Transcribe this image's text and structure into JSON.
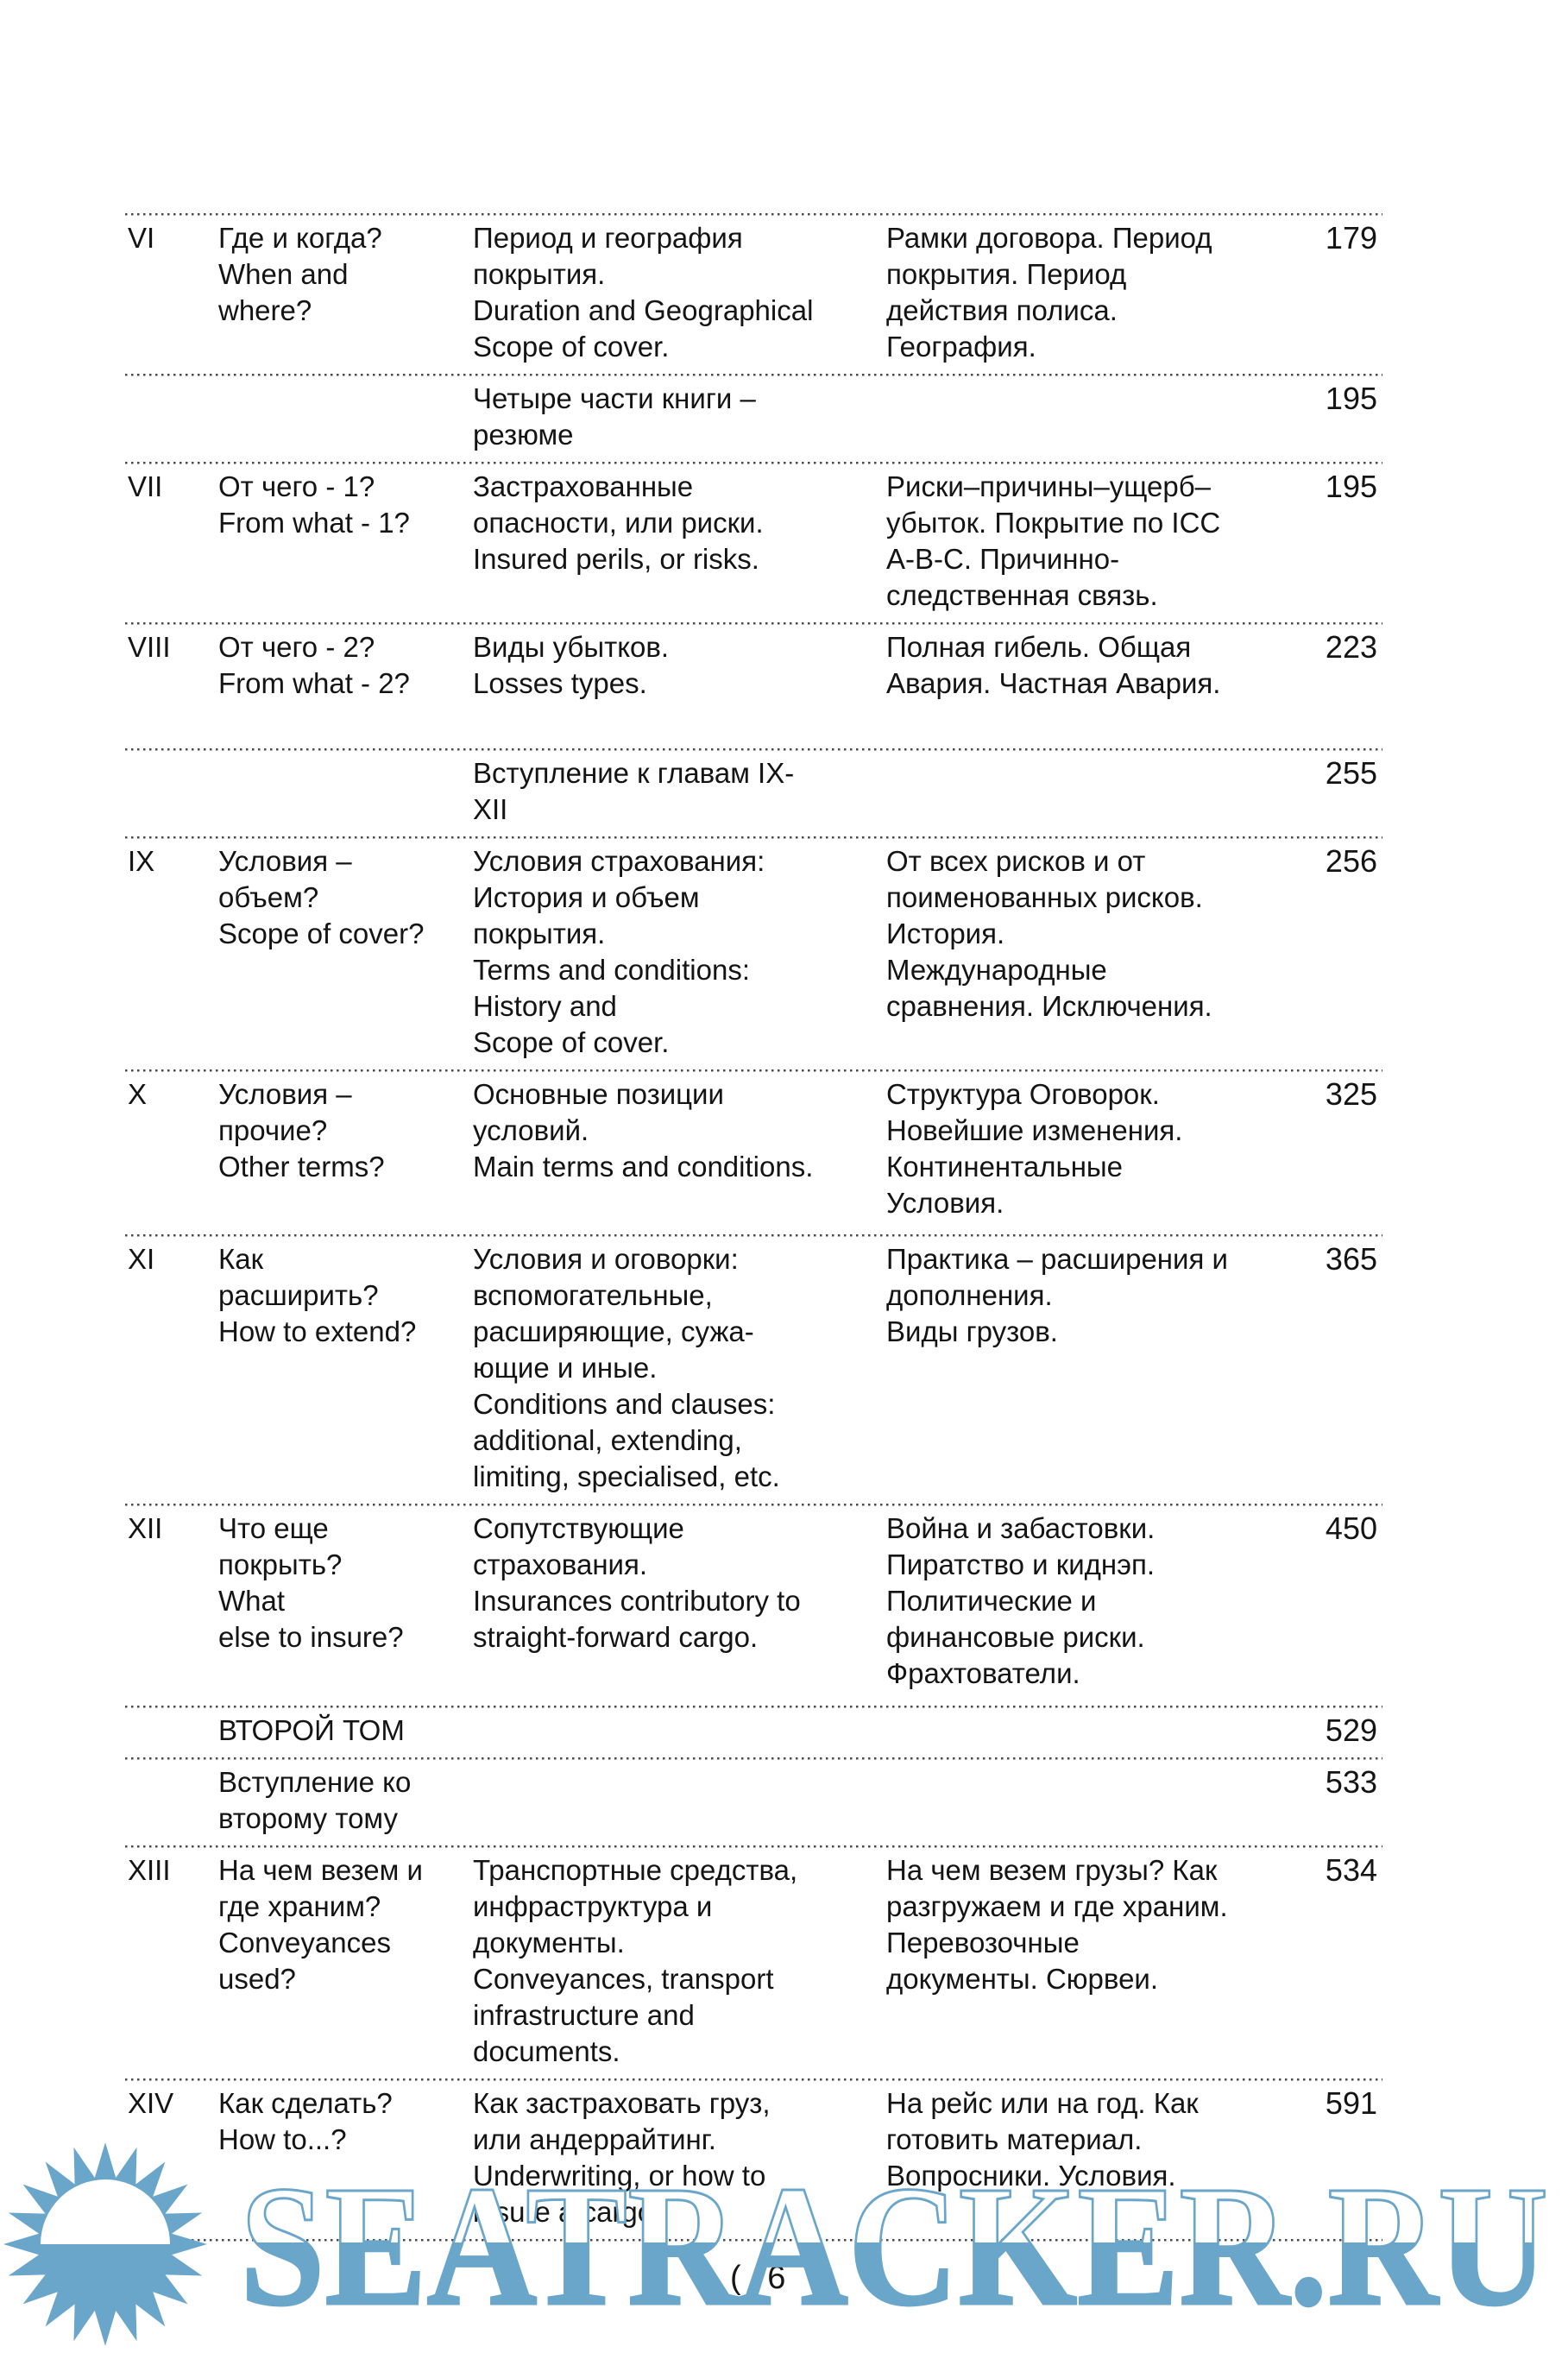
{
  "page": {
    "number_label": "( 6 )"
  },
  "toc": {
    "rows": [
      {
        "num": "VI",
        "title": [
          "Где и когда?",
          "When and",
          "where?"
        ],
        "desc": [
          "Период и география",
          "покрытия.",
          "Duration and Geographical",
          "Scope of cover."
        ],
        "summary": [
          "Рамки договора. Период",
          "покрытия. Период",
          "действия полиса.",
          "География."
        ],
        "pg": "179"
      },
      {
        "num": "",
        "title": [],
        "desc": [
          "Четыре части книги –",
          "резюме"
        ],
        "summary": [],
        "pg": "195"
      },
      {
        "num": "VII",
        "title": [
          "От чего - 1?",
          "From what - 1?"
        ],
        "desc": [
          "Застрахованные",
          "опасности, или риски.",
          "Insured perils, or risks."
        ],
        "summary": [
          "Риски–причины–ущерб–",
          "убыток. Покрытие по ICC",
          "A-B-C. Причинно-",
          "следственная связь."
        ],
        "pg": "195"
      },
      {
        "num": "VIII",
        "title": [
          "От чего - 2?",
          "From what - 2?"
        ],
        "desc": [
          "Виды убытков.",
          "Losses types."
        ],
        "summary": [
          "Полная гибель. Общая",
          "Авария. Частная Авария."
        ],
        "pg": "223"
      },
      {
        "num": "",
        "title": [],
        "desc": [
          "Вступление к главам IX-",
          "XII"
        ],
        "summary": [],
        "pg": "255"
      },
      {
        "num": "IX",
        "title": [
          "Условия –",
          "объем?",
          "Scope of cover?"
        ],
        "desc": [
          "Условия страхования:",
          "История и объем",
          "покрытия.",
          "Terms and conditions:",
          "History and",
          "Scope of cover."
        ],
        "summary": [
          "От всех рисков и от",
          "поименованных рисков.",
          "История.",
          "Международные",
          "сравнения. Исключения."
        ],
        "pg": "256"
      },
      {
        "num": "X",
        "title": [
          "Условия –",
          "прочие?",
          "Other terms?"
        ],
        "desc": [
          "Основные позиции",
          "условий.",
          "Main terms and conditions."
        ],
        "summary": [
          "Структура Оговорок.",
          "Новейшие изменения.",
          "Континентальные",
          "Условия."
        ],
        "pg": "325"
      },
      {
        "num": "XI",
        "title": [
          "Как",
          "расширить?",
          "How to extend?"
        ],
        "desc": [
          "Условия и оговорки:",
          "вспомогательные,",
          "расширяющие, сужа-",
          "ющие и иные.",
          "Conditions and clauses:",
          "additional, extending,",
          "limiting, specialised, etc."
        ],
        "summary": [
          "Практика – расширения и",
          "дополнения.",
          "Виды грузов."
        ],
        "pg": "365"
      },
      {
        "num": "XII",
        "title": [
          "Что еще",
          "покрыть?",
          "What",
          "else to insure?"
        ],
        "desc": [
          "Сопутствующие",
          "страхования.",
          "Insurances contributory to",
          "straight-forward cargo."
        ],
        "summary": [
          "Война и забастовки.",
          "Пиратство и киднэп.",
          "Политические и",
          "финансовые риски.",
          "Фрахтователи."
        ],
        "pg": "450"
      },
      {
        "num": "",
        "title": [
          "ВТОРОЙ ТОМ"
        ],
        "desc": [],
        "summary": [],
        "pg": "529"
      },
      {
        "num": "",
        "title": [
          "Вступление ко",
          "второму тому"
        ],
        "desc": [],
        "summary": [],
        "pg": "533"
      },
      {
        "num": "XIII",
        "title": [
          "На чем везем и",
          "где храним?",
          "Conveyances",
          "used?"
        ],
        "desc": [
          "Транспортные средства,",
          "инфраструктура и",
          "документы.",
          "Conveyances, transport",
          "infrastructure and",
          "documents."
        ],
        "summary": [
          "На чем везем грузы? Как",
          "разгружаем и где храним.",
          "Перевозочные",
          "документы. Сюрвеи."
        ],
        "pg": "534"
      },
      {
        "num": "XIV",
        "title": [
          "Как сделать?",
          "How to...?"
        ],
        "desc": [
          "Как застраховать груз,",
          "или андеррайтинг.",
          "Underwriting, or how to",
          "insure a cargo."
        ],
        "summary": [
          "На рейс или на год. Как",
          "готовить материал.",
          "Вопросники. Условия."
        ],
        "pg": "591"
      }
    ]
  },
  "watermark": {
    "logo_text": "SEATRACKER.RU",
    "color": "#6aa6ca",
    "sun_icon": "sun-over-horizon"
  }
}
